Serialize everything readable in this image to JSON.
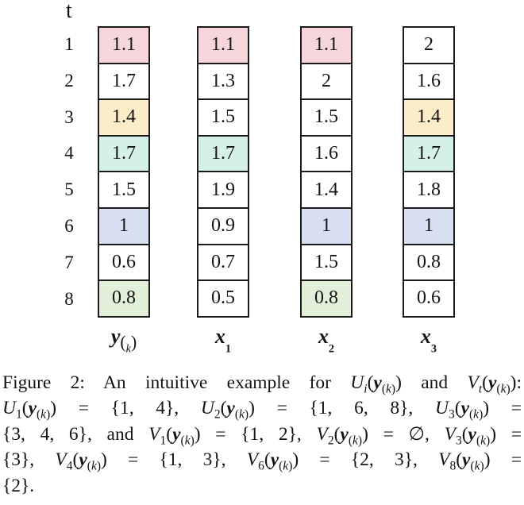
{
  "palette": {
    "pink": "#f7d6db",
    "yellow": "#fbedc7",
    "teal": "#d5f0e9",
    "blue": "#d7dff1",
    "green": "#e2f0da",
    "white": "#ffffff"
  },
  "figure": {
    "time_axis_label": "t",
    "row_indices": [
      "1",
      "2",
      "3",
      "4",
      "5",
      "6",
      "7",
      "8"
    ],
    "columns": [
      {
        "label": {
          "base": "y",
          "sub": [
            [
              "p",
              "("
            ],
            [
              "si",
              "k"
            ],
            [
              "p",
              ")"
            ]
          ]
        },
        "cells": [
          {
            "value": "1.1",
            "color": "pink"
          },
          {
            "value": "1.7",
            "color": "white"
          },
          {
            "value": "1.4",
            "color": "yellow"
          },
          {
            "value": "1.7",
            "color": "teal"
          },
          {
            "value": "1.5",
            "color": "white"
          },
          {
            "value": "1",
            "color": "blue"
          },
          {
            "value": "0.6",
            "color": "white"
          },
          {
            "value": "0.8",
            "color": "green"
          }
        ]
      },
      {
        "label": {
          "base": "x",
          "sub": [
            [
              "s",
              "1"
            ]
          ]
        },
        "cells": [
          {
            "value": "1.1",
            "color": "pink"
          },
          {
            "value": "1.3",
            "color": "white"
          },
          {
            "value": "1.5",
            "color": "white"
          },
          {
            "value": "1.7",
            "color": "teal"
          },
          {
            "value": "1.9",
            "color": "white"
          },
          {
            "value": "0.9",
            "color": "white"
          },
          {
            "value": "0.7",
            "color": "white"
          },
          {
            "value": "0.5",
            "color": "white"
          }
        ]
      },
      {
        "label": {
          "base": "x",
          "sub": [
            [
              "s",
              "2"
            ]
          ]
        },
        "cells": [
          {
            "value": "1.1",
            "color": "pink"
          },
          {
            "value": "2",
            "color": "white"
          },
          {
            "value": "1.5",
            "color": "white"
          },
          {
            "value": "1.6",
            "color": "white"
          },
          {
            "value": "1.4",
            "color": "white"
          },
          {
            "value": "1",
            "color": "blue"
          },
          {
            "value": "1.5",
            "color": "white"
          },
          {
            "value": "0.8",
            "color": "green"
          }
        ]
      },
      {
        "label": {
          "base": "x",
          "sub": [
            [
              "s",
              "3"
            ]
          ]
        },
        "cells": [
          {
            "value": "2",
            "color": "white"
          },
          {
            "value": "1.6",
            "color": "white"
          },
          {
            "value": "1.4",
            "color": "yellow"
          },
          {
            "value": "1.7",
            "color": "teal"
          },
          {
            "value": "1.8",
            "color": "white"
          },
          {
            "value": "1",
            "color": "blue"
          },
          {
            "value": "0.8",
            "color": "white"
          },
          {
            "value": "0.6",
            "color": "white"
          }
        ]
      }
    ]
  },
  "symbols": {
    "y_base": "y",
    "sub_open": "(",
    "sub_k": "k",
    "sub_close": ")"
  },
  "caption": {
    "lines": [
      {
        "justify": true,
        "tokens": [
          [
            "p",
            "Figure 2: An intuitive example for "
          ],
          [
            "v",
            "U"
          ],
          [
            "si",
            "i"
          ],
          [
            "p",
            "("
          ],
          [
            "y",
            ""
          ],
          [
            "p",
            ") and "
          ],
          [
            "v",
            "V"
          ],
          [
            "si",
            "t"
          ],
          [
            "p",
            "("
          ],
          [
            "y",
            ""
          ],
          [
            "p",
            "):"
          ]
        ]
      },
      {
        "justify": true,
        "tokens": [
          [
            "v",
            "U"
          ],
          [
            "s",
            "1"
          ],
          [
            "p",
            "("
          ],
          [
            "y",
            ""
          ],
          [
            "p",
            ") = {1, 4}, "
          ],
          [
            "v",
            "U"
          ],
          [
            "s",
            "2"
          ],
          [
            "p",
            "("
          ],
          [
            "y",
            ""
          ],
          [
            "p",
            ") = {1, 6, 8}, "
          ],
          [
            "v",
            "U"
          ],
          [
            "s",
            "3"
          ],
          [
            "p",
            "("
          ],
          [
            "y",
            ""
          ],
          [
            "p",
            ") ="
          ]
        ]
      },
      {
        "justify": true,
        "tokens": [
          [
            "p",
            "{3, 4, 6}, and "
          ],
          [
            "v",
            "V"
          ],
          [
            "s",
            "1"
          ],
          [
            "p",
            "("
          ],
          [
            "y",
            ""
          ],
          [
            "p",
            ") = {1, 2}, "
          ],
          [
            "v",
            "V"
          ],
          [
            "s",
            "2"
          ],
          [
            "p",
            "("
          ],
          [
            "y",
            ""
          ],
          [
            "p",
            ") = ∅, "
          ],
          [
            "v",
            "V"
          ],
          [
            "s",
            "3"
          ],
          [
            "p",
            "("
          ],
          [
            "y",
            ""
          ],
          [
            "p",
            ") ="
          ]
        ]
      },
      {
        "justify": true,
        "tokens": [
          [
            "p",
            "{3}, "
          ],
          [
            "v",
            "V"
          ],
          [
            "s",
            "4"
          ],
          [
            "p",
            "("
          ],
          [
            "y",
            ""
          ],
          [
            "p",
            ") = {1, 3}, "
          ],
          [
            "v",
            "V"
          ],
          [
            "s",
            "6"
          ],
          [
            "p",
            "("
          ],
          [
            "y",
            ""
          ],
          [
            "p",
            ") = {2, 3}, "
          ],
          [
            "v",
            "V"
          ],
          [
            "s",
            "8"
          ],
          [
            "p",
            "("
          ],
          [
            "y",
            ""
          ],
          [
            "p",
            ") ="
          ]
        ]
      },
      {
        "justify": false,
        "tokens": [
          [
            "p",
            "{2}."
          ]
        ]
      }
    ]
  }
}
